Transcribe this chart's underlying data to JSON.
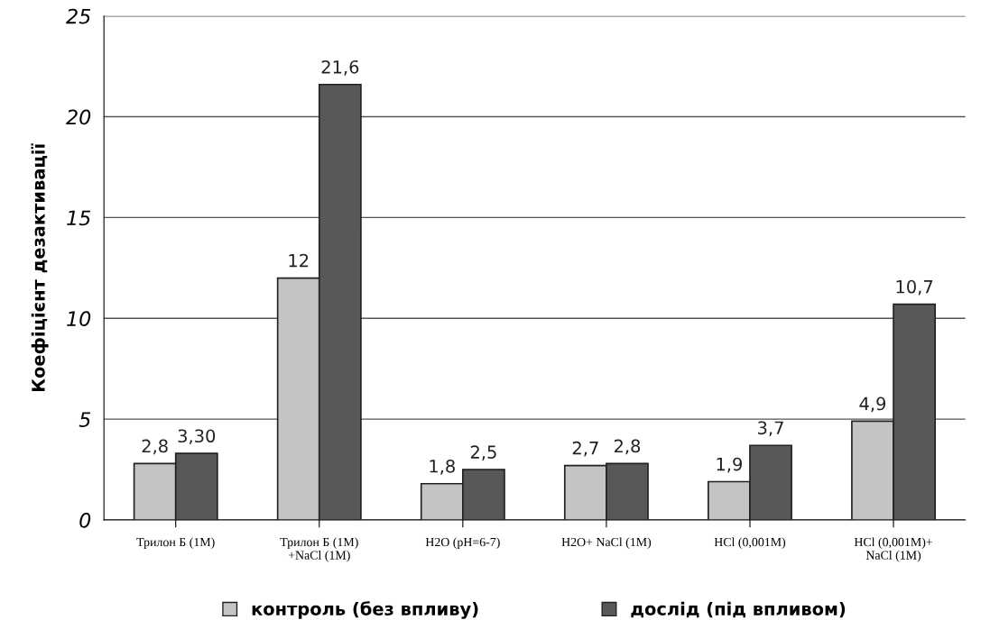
{
  "chart_data": {
    "type": "bar",
    "ylabel": "Коефіцієнт дезактивації",
    "categories": [
      "Трилон Б (1M)",
      "Трилон Б (1M)\n+NaCl (1M)",
      "H2O (pH=6-7)",
      "H2O+ NaCl (1M)",
      "HCl (0,001M)",
      "HCl (0,001M)+\nNaCl (1M)"
    ],
    "series": [
      {
        "name": "контроль (без впливу)",
        "color": "#c4c4c4",
        "values": [
          2.8,
          12,
          1.8,
          2.7,
          1.9,
          4.9
        ],
        "value_labels": [
          "2,8",
          "12",
          "1,8",
          "2,7",
          "1,9",
          "4,9"
        ]
      },
      {
        "name": "дослід (під впливом)",
        "color": "#585858",
        "values": [
          3.3,
          21.6,
          2.5,
          2.8,
          3.7,
          10.7
        ],
        "value_labels": [
          "3,30",
          "21,6",
          "2,5",
          "2,8",
          "3,7",
          "10,7"
        ]
      }
    ],
    "ylim": [
      0,
      25
    ],
    "yticks": [
      0,
      5,
      10,
      15,
      20,
      25
    ],
    "grid": "y",
    "legend": "bottom"
  }
}
